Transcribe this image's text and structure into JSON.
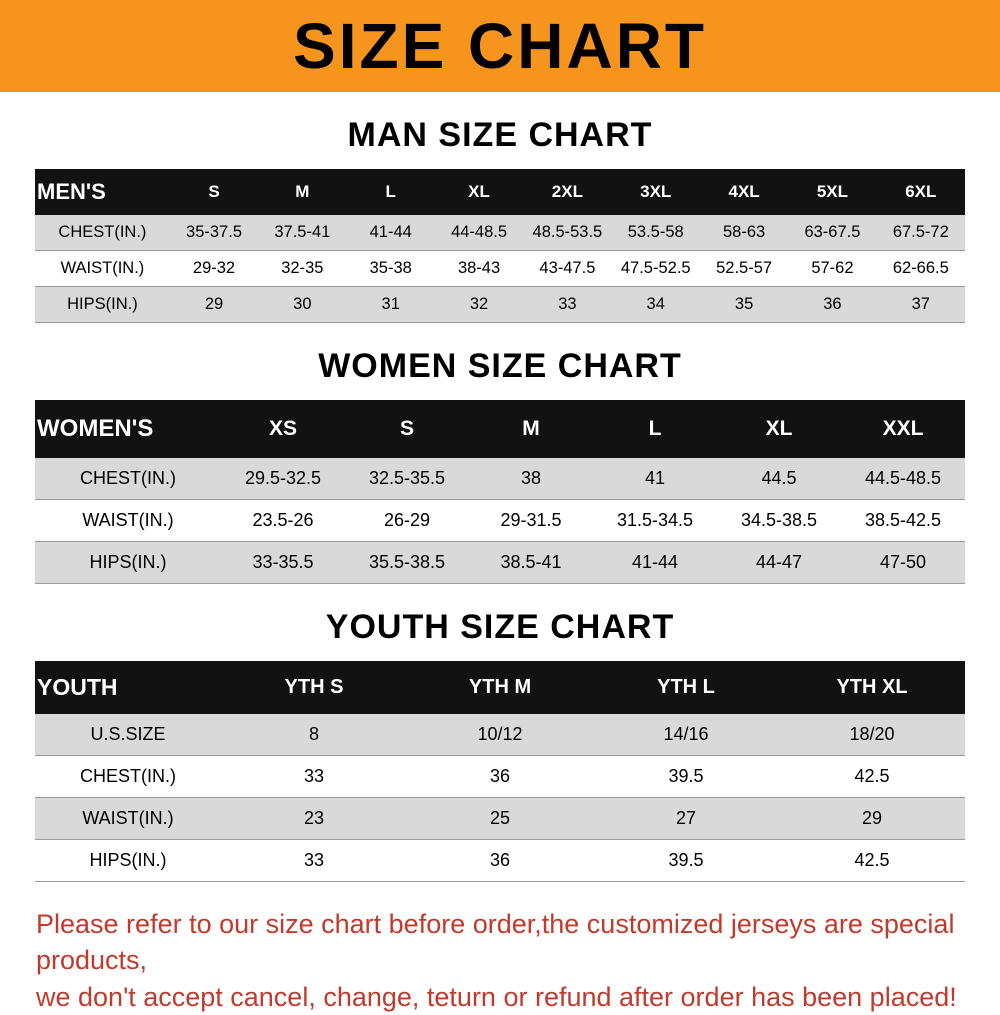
{
  "banner": {
    "title": "SIZE CHART"
  },
  "colors": {
    "banner_bg": "#f7941e",
    "table_header_bg": "#121212",
    "row_alt_bg": "#d9d9d9",
    "note_text": "#c13a2d"
  },
  "chart_data": [
    {
      "type": "table",
      "title": "MAN SIZE CHART",
      "columns": [
        "MEN'S",
        "S",
        "M",
        "L",
        "XL",
        "2XL",
        "3XL",
        "4XL",
        "5XL",
        "6XL"
      ],
      "rows": [
        [
          "CHEST(IN.)",
          "35-37.5",
          "37.5-41",
          "41-44",
          "44-48.5",
          "48.5-53.5",
          "53.5-58",
          "58-63",
          "63-67.5",
          "67.5-72"
        ],
        [
          "WAIST(IN.)",
          "29-32",
          "32-35",
          "35-38",
          "38-43",
          "43-47.5",
          "47.5-52.5",
          "52.5-57",
          "57-62",
          "62-66.5"
        ],
        [
          "HIPS(IN.)",
          "29",
          "30",
          "31",
          "32",
          "33",
          "34",
          "35",
          "36",
          "37"
        ]
      ]
    },
    {
      "type": "table",
      "title": "WOMEN SIZE CHART",
      "columns": [
        "WOMEN'S",
        "XS",
        "S",
        "M",
        "L",
        "XL",
        "XXL"
      ],
      "rows": [
        [
          "CHEST(IN.)",
          "29.5-32.5",
          "32.5-35.5",
          "38",
          "41",
          "44.5",
          "44.5-48.5"
        ],
        [
          "WAIST(IN.)",
          "23.5-26",
          "26-29",
          "29-31.5",
          "31.5-34.5",
          "34.5-38.5",
          "38.5-42.5"
        ],
        [
          "HIPS(IN.)",
          "33-35.5",
          "35.5-38.5",
          "38.5-41",
          "41-44",
          "44-47",
          "47-50"
        ]
      ]
    },
    {
      "type": "table",
      "title": "YOUTH SIZE CHART",
      "columns": [
        "YOUTH",
        "YTH S",
        "YTH M",
        "YTH L",
        "YTH XL"
      ],
      "rows": [
        [
          "U.S.SIZE",
          "8",
          "10/12",
          "14/16",
          "18/20"
        ],
        [
          "CHEST(IN.)",
          "33",
          "36",
          "39.5",
          "42.5"
        ],
        [
          "WAIST(IN.)",
          "23",
          "25",
          "27",
          "29"
        ],
        [
          "HIPS(IN.)",
          "33",
          "36",
          "39.5",
          "42.5"
        ]
      ]
    }
  ],
  "footer": {
    "lines": [
      "Please refer to our size chart before order,the customized jerseys are special products,",
      "we don't accept cancel, change, teturn or refund after order has been placed!"
    ]
  }
}
